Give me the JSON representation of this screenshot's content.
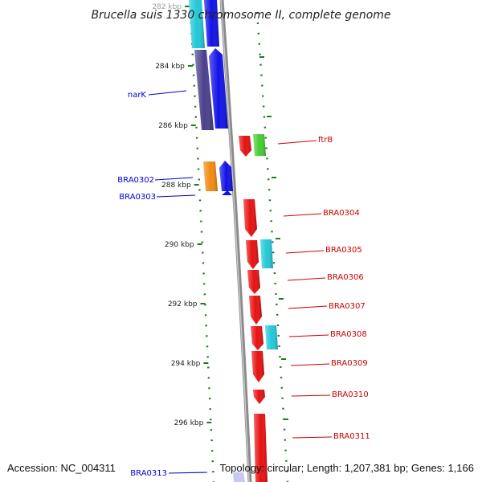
{
  "title": "Brucella suis 1330 chromosome II, complete genome",
  "footer": {
    "accession": "Accession: NC_004311",
    "summary": "Topology: circular; Length: 1,207,381 bp; Genes: 1,166"
  },
  "colors": {
    "backbone": "#8a8a8a",
    "tick": "#1f7a1f",
    "forward_label": "#cc0000",
    "reverse_label": "#0000cc",
    "cyan": "#22c8d8",
    "blue": "#1010e8",
    "indigo": "#4a3f8c",
    "orange": "#f08a10",
    "red": "#e81010",
    "green": "#44cc33",
    "lavender": "#c8c8f0"
  },
  "ticks": [
    {
      "label": "282 kbp"
    },
    {
      "label": "284 kbp"
    },
    {
      "label": "286 kbp"
    },
    {
      "label": "288 kbp"
    },
    {
      "label": "290 kbp"
    },
    {
      "label": "292 kbp"
    },
    {
      "label": "294 kbp"
    },
    {
      "label": "296 kbp"
    }
  ],
  "gene_labels": [
    {
      "text": "narK",
      "strand": "reverse"
    },
    {
      "text": "ftrB",
      "strand": "forward"
    },
    {
      "text": "BRA0302",
      "strand": "reverse"
    },
    {
      "text": "BRA0303",
      "strand": "reverse"
    },
    {
      "text": "BRA0304",
      "strand": "forward"
    },
    {
      "text": "BRA0305",
      "strand": "forward"
    },
    {
      "text": "BRA0306",
      "strand": "forward"
    },
    {
      "text": "BRA0307",
      "strand": "forward"
    },
    {
      "text": "BRA0308",
      "strand": "forward"
    },
    {
      "text": "BRA0309",
      "strand": "forward"
    },
    {
      "text": "BRA0310",
      "strand": "forward"
    },
    {
      "text": "BRA0311",
      "strand": "forward"
    },
    {
      "text": "BRA0313",
      "strand": "reverse"
    }
  ]
}
